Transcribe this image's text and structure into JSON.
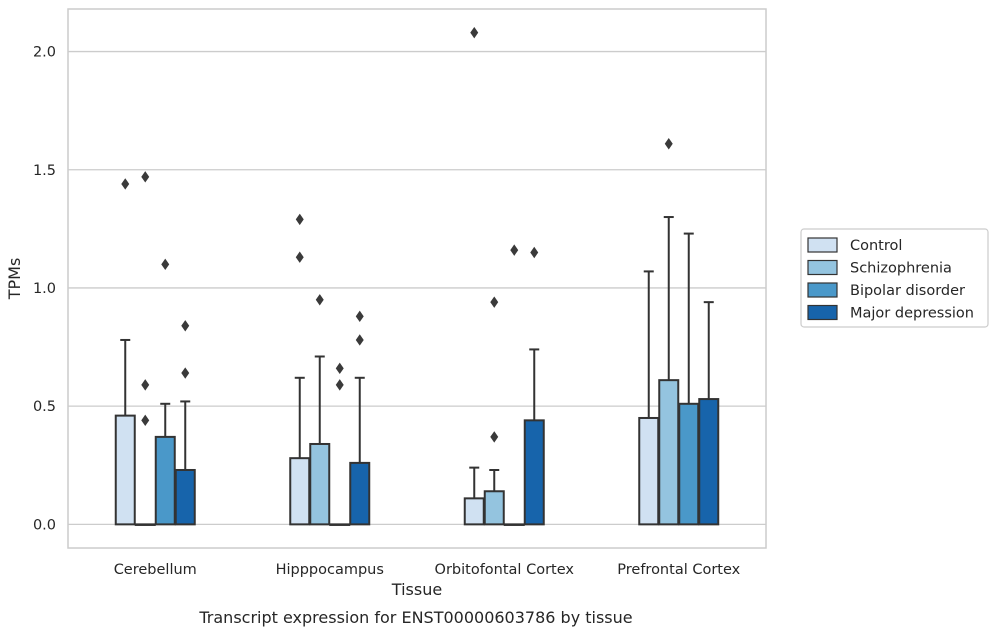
{
  "chart_data": {
    "type": "bar",
    "xlabel": "Tissue",
    "ylabel": "TPMs",
    "caption": "Transcript expression for ENST00000603786 by tissue",
    "ylim": [
      -0.1,
      2.18
    ],
    "yticks": [
      0.0,
      0.5,
      1.0,
      1.5,
      2.0
    ],
    "ytick_labels": [
      "0.0",
      "0.5",
      "1.0",
      "1.5",
      "2.0"
    ],
    "grid": true,
    "legend_position": "right",
    "categories": [
      "Cerebellum",
      "Hipppocampus",
      "Orbitofontal Cortex",
      "Prefrontal Cortex"
    ],
    "series": [
      {
        "name": "Control",
        "color": "#d0e1f2",
        "values": [
          0.46,
          0.28,
          0.11,
          0.45
        ],
        "error_upper": [
          0.78,
          0.62,
          0.24,
          1.07
        ],
        "outliers": [
          [
            1.44
          ],
          [
            1.29,
            1.13
          ],
          [
            2.08
          ],
          []
        ]
      },
      {
        "name": "Schizophrenia",
        "color": "#94c4df",
        "values": [
          0.0,
          0.34,
          0.14,
          0.61
        ],
        "error_upper": [
          null,
          0.71,
          0.23,
          1.3
        ],
        "outliers": [
          [
            1.47,
            0.59,
            0.44
          ],
          [
            0.95
          ],
          [
            0.94,
            0.37
          ],
          [
            1.61
          ]
        ]
      },
      {
        "name": "Bipolar disorder",
        "color": "#4a98c9",
        "values": [
          0.37,
          0.0,
          0.0,
          0.51
        ],
        "error_upper": [
          0.51,
          null,
          null,
          1.23
        ],
        "outliers": [
          [
            1.1
          ],
          [
            0.66,
            0.59
          ],
          [
            1.16
          ],
          []
        ]
      },
      {
        "name": "Major depression",
        "color": "#1764ab",
        "values": [
          0.23,
          0.26,
          0.44,
          0.53
        ],
        "error_upper": [
          0.52,
          0.62,
          0.74,
          0.94
        ],
        "outliers": [
          [
            0.84,
            0.64
          ],
          [
            0.88,
            0.78
          ],
          [
            1.15
          ],
          []
        ]
      }
    ]
  }
}
